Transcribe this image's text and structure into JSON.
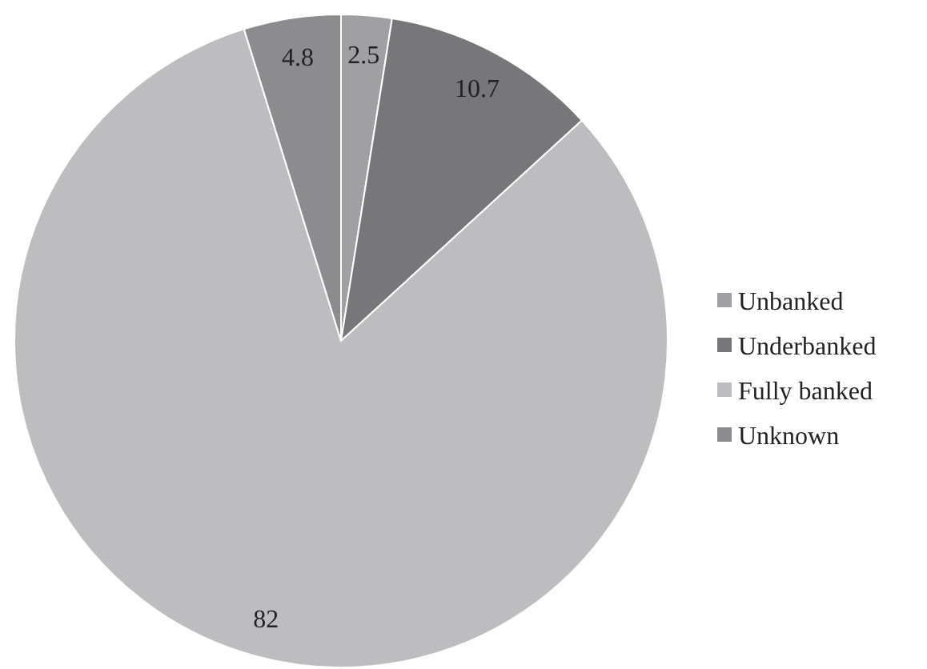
{
  "chart_data": {
    "type": "pie",
    "categories": [
      "Unbanked",
      "Underbanked",
      "Fully banked",
      "Unknown"
    ],
    "values": [
      2.5,
      10.7,
      82,
      4.8
    ],
    "colors": [
      "#a0a0a3",
      "#77777a",
      "#bdbdc0",
      "#8c8c8f"
    ],
    "data_labels": true,
    "legend": "right"
  }
}
